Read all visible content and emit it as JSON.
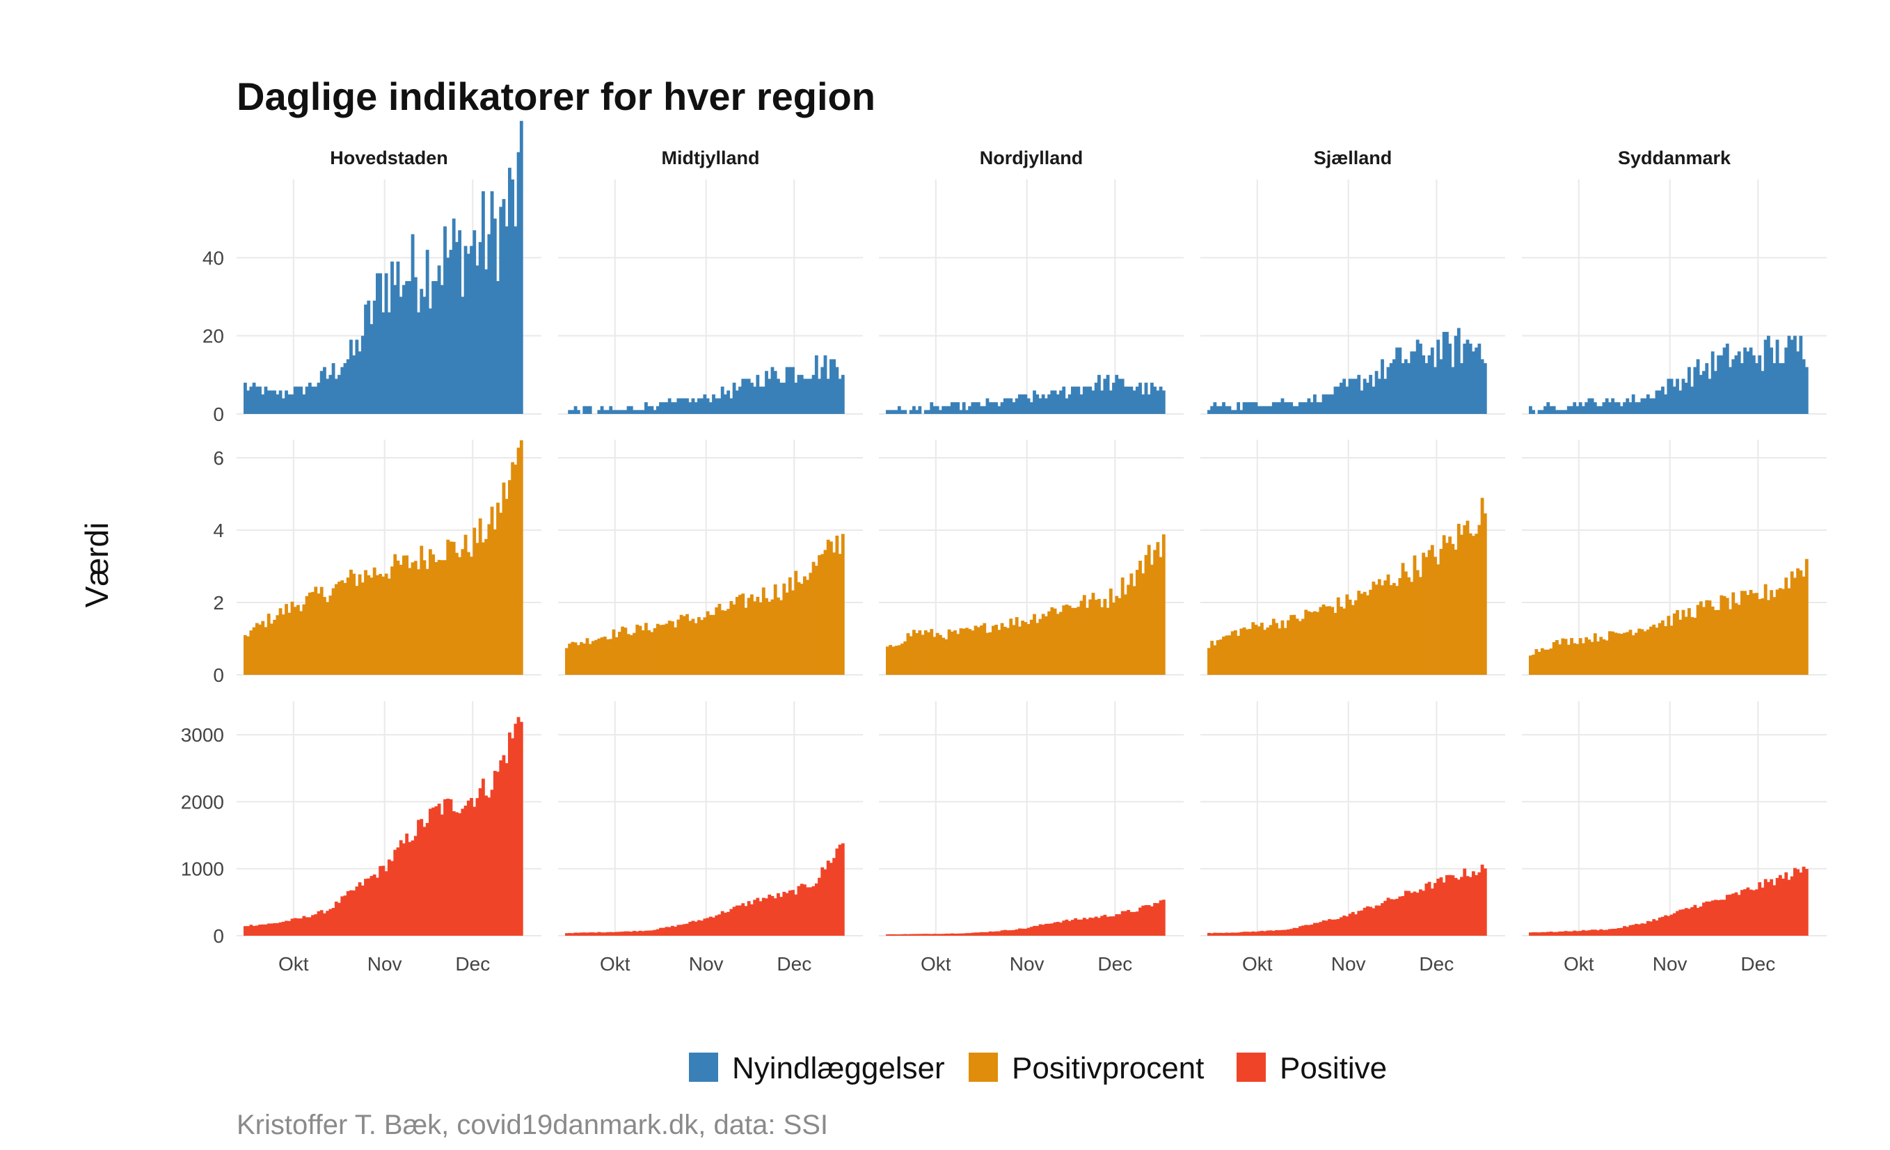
{
  "chart_data": {
    "type": "bar",
    "title": "Daglige indikatorer for hver region",
    "ylabel": "Værdi",
    "caption": "Kristoffer T. Bæk, covid19danmark.dk, data: SSI",
    "panels": [
      "Hovedstaden",
      "Midtjylland",
      "Nordjylland",
      "Sjælland",
      "Syddanmark"
    ],
    "x_ticks": [
      "Okt",
      "Nov",
      "Dec"
    ],
    "x_range": [
      "2020-09-14",
      "2020-12-17"
    ],
    "grid": true,
    "legend_position": "bottom",
    "series": [
      {
        "name": "Nyindlæggelser",
        "color": "#3a80b8",
        "ylim": [
          0,
          60
        ],
        "y_ticks": [
          "0",
          "20",
          "40"
        ],
        "y_tick_values": [
          0,
          20,
          40
        ],
        "profiles": {
          "Hovedstaden": [
            7,
            5,
            6,
            10,
            16,
            34,
            36,
            40,
            42,
            46,
            58
          ],
          "Midtjylland": [
            1,
            1,
            1,
            2,
            3,
            4,
            6,
            9,
            11,
            12,
            13
          ],
          "Nordjylland": [
            1,
            1,
            2,
            2,
            3,
            4,
            5,
            7,
            8,
            7,
            6
          ],
          "Sjælland": [
            2,
            2,
            3,
            3,
            4,
            7,
            10,
            14,
            16,
            17,
            18
          ],
          "Syddanmark": [
            1,
            2,
            3,
            3,
            4,
            7,
            11,
            14,
            15,
            16,
            17
          ]
        }
      },
      {
        "name": "Positivprocent",
        "color": "#e08d0c",
        "ylim": [
          0,
          6.5
        ],
        "y_ticks": [
          "0",
          "2",
          "4",
          "6"
        ],
        "y_tick_values": [
          0,
          2,
          4,
          6
        ],
        "profiles": {
          "Hovedstaden": [
            1.1,
            1.6,
            2.0,
            2.3,
            2.7,
            2.9,
            3.1,
            3.5,
            3.5,
            4.2,
            6.2
          ],
          "Midtjylland": [
            0.8,
            1.0,
            1.2,
            1.3,
            1.5,
            1.6,
            1.9,
            2.2,
            2.4,
            3.0,
            3.8
          ],
          "Nordjylland": [
            0.7,
            1.2,
            1.1,
            1.2,
            1.4,
            1.5,
            1.8,
            2.0,
            2.1,
            2.8,
            3.8
          ],
          "Sjælland": [
            0.8,
            1.2,
            1.4,
            1.5,
            1.8,
            2.0,
            2.4,
            2.8,
            3.2,
            3.8,
            4.6
          ],
          "Syddanmark": [
            0.6,
            0.9,
            1.0,
            1.1,
            1.3,
            1.5,
            1.8,
            2.0,
            2.1,
            2.4,
            3.1
          ]
        }
      },
      {
        "name": "Positive",
        "color": "#f04428",
        "ylim": [
          0,
          3500
        ],
        "y_ticks": [
          "0",
          "1000",
          "2000",
          "3000"
        ],
        "y_tick_values": [
          0,
          1000,
          2000,
          3000
        ],
        "profiles": {
          "Hovedstaden": [
            150,
            180,
            260,
            380,
            700,
            1000,
            1500,
            1900,
            2000,
            2300,
            3300
          ],
          "Midtjylland": [
            40,
            50,
            60,
            80,
            150,
            250,
            400,
            550,
            620,
            800,
            1400
          ],
          "Nordjylland": [
            20,
            25,
            30,
            40,
            70,
            110,
            200,
            250,
            300,
            380,
            520
          ],
          "Sjælland": [
            40,
            50,
            70,
            100,
            200,
            300,
            450,
            600,
            750,
            900,
            1000
          ],
          "Syddanmark": [
            50,
            60,
            80,
            100,
            180,
            300,
            450,
            550,
            700,
            850,
            1000
          ]
        }
      }
    ]
  }
}
